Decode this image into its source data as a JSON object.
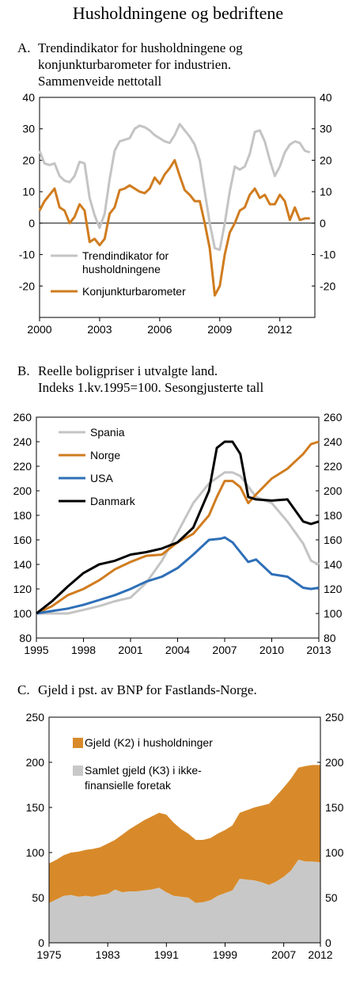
{
  "page": {
    "title": "Husholdningene og bedriftene"
  },
  "colors": {
    "orange": "#d07c1f",
    "gray": "#c4c4c4",
    "blue": "#2e6fb7",
    "black": "#000000",
    "area_gray": "#c8c8c8",
    "area_orange": "#d88a2a"
  },
  "chart_data": [
    {
      "id": "A",
      "type": "line",
      "title_letter": "A.",
      "title_lines": [
        "Trendindikator for husholdningene og",
        "konjunkturbarometer for industrien.",
        "Sammenveide nettotall"
      ],
      "xlim": [
        2000,
        2013.75
      ],
      "ylim": [
        -30,
        40
      ],
      "y_ticks": [
        "40",
        "30",
        "20",
        "10",
        "0",
        "-10",
        "-20"
      ],
      "y_tick_values": [
        40,
        30,
        20,
        10,
        0,
        -10,
        -20
      ],
      "x_ticks": [
        "2000",
        "2003",
        "2006",
        "2009",
        "2012"
      ],
      "x_tick_values": [
        2000,
        2003,
        2006,
        2009,
        2012
      ],
      "zero_line": true,
      "legend_position": "lower-left",
      "series": [
        {
          "name": "Trendindikator for husholdningene",
          "legend_lines": [
            "Trendindikator for",
            "husholdningene"
          ],
          "color": "gray",
          "x": [
            2000,
            2000.25,
            2000.5,
            2000.75,
            2001,
            2001.25,
            2001.5,
            2001.75,
            2002,
            2002.25,
            2002.5,
            2002.75,
            2003,
            2003.25,
            2003.5,
            2003.75,
            2004,
            2004.25,
            2004.5,
            2004.75,
            2005,
            2005.25,
            2005.5,
            2005.75,
            2006,
            2006.25,
            2006.5,
            2006.75,
            2007,
            2007.25,
            2007.5,
            2007.75,
            2008,
            2008.25,
            2008.5,
            2008.75,
            2009,
            2009.25,
            2009.5,
            2009.75,
            2010,
            2010.25,
            2010.5,
            2010.75,
            2011,
            2011.25,
            2011.5,
            2011.75,
            2012,
            2012.25,
            2012.5,
            2012.75,
            2013,
            2013.25,
            2013.5
          ],
          "y": [
            23,
            19,
            18.5,
            19,
            15,
            13.5,
            13,
            15,
            19.5,
            19,
            8,
            2.5,
            -1.5,
            3,
            14,
            23,
            26,
            26.5,
            27,
            30,
            31,
            30.5,
            29.5,
            28,
            27,
            26,
            25.5,
            28,
            31.5,
            29.5,
            27.5,
            25,
            20,
            10,
            0,
            -8,
            -8.5,
            0,
            10,
            18,
            17,
            18,
            22,
            29,
            29.5,
            26,
            20,
            15,
            18,
            22.5,
            25,
            26,
            25.5,
            23,
            22.5
          ]
        },
        {
          "name": "Konjunkturbarometer",
          "legend_lines": [
            "Konjunkturbarometer"
          ],
          "color": "orange",
          "x": [
            2000,
            2000.25,
            2000.5,
            2000.75,
            2001,
            2001.25,
            2001.5,
            2001.75,
            2002,
            2002.25,
            2002.5,
            2002.75,
            2003,
            2003.25,
            2003.5,
            2003.75,
            2004,
            2004.25,
            2004.5,
            2004.75,
            2005,
            2005.25,
            2005.5,
            2005.75,
            2006,
            2006.25,
            2006.5,
            2006.75,
            2007,
            2007.25,
            2007.5,
            2007.75,
            2008,
            2008.25,
            2008.5,
            2008.75,
            2009,
            2009.25,
            2009.5,
            2009.75,
            2010,
            2010.25,
            2010.5,
            2010.75,
            2011,
            2011.25,
            2011.5,
            2011.75,
            2012,
            2012.25,
            2012.5,
            2012.75,
            2013,
            2013.25,
            2013.5
          ],
          "y": [
            4,
            7,
            9,
            11,
            5,
            4,
            0,
            2,
            6,
            4,
            -6,
            -5,
            -7,
            -5,
            3,
            5,
            10.5,
            11,
            12,
            11,
            10,
            9.5,
            11,
            14.5,
            12.5,
            15.5,
            17.5,
            20,
            15,
            10.5,
            9,
            7,
            7,
            0,
            -8,
            -23,
            -20,
            -10,
            -3,
            0,
            4,
            5,
            9,
            11,
            8,
            9,
            6,
            6,
            9,
            7,
            1,
            5,
            1,
            1.5,
            1.5
          ]
        }
      ]
    },
    {
      "id": "B",
      "type": "line",
      "title_letter": "B.",
      "title_lines": [
        "Reelle boligpriser i utvalgte land.",
        "Indeks 1.kv.1995=100. Sesongjusterte tall"
      ],
      "xlim": [
        1995,
        2013
      ],
      "ylim": [
        80,
        260
      ],
      "y_ticks": [
        "260",
        "240",
        "220",
        "200",
        "180",
        "160",
        "140",
        "120",
        "100",
        "80"
      ],
      "y_tick_values": [
        260,
        240,
        220,
        200,
        180,
        160,
        140,
        120,
        100,
        80
      ],
      "x_ticks": [
        "1995",
        "1998",
        "2001",
        "2004",
        "2007",
        "2010",
        "2013"
      ],
      "x_tick_values": [
        1995,
        1998,
        2001,
        2004,
        2007,
        2010,
        2013
      ],
      "legend_position": "top-left",
      "series": [
        {
          "name": "Spania",
          "color": "gray",
          "x": [
            1995,
            1996,
            1997,
            1998,
            1999,
            2000,
            2001,
            2002,
            2003,
            2004,
            2005,
            2006,
            2007,
            2007.5,
            2008,
            2009,
            2010,
            2011,
            2012,
            2012.5,
            2013
          ],
          "y": [
            100,
            100,
            100,
            103,
            106,
            110,
            113,
            125,
            143,
            166,
            190,
            206,
            215,
            215,
            212,
            195,
            190,
            175,
            157,
            143,
            140
          ]
        },
        {
          "name": "Norge",
          "color": "orange",
          "x": [
            1995,
            1996,
            1997,
            1998,
            1999,
            2000,
            2001,
            2002,
            2003,
            2004,
            2005,
            2006,
            2006.5,
            2007,
            2007.5,
            2008,
            2008.5,
            2009,
            2010,
            2011,
            2012,
            2012.5,
            2013
          ],
          "y": [
            100,
            106,
            115,
            120,
            127,
            136,
            142,
            147,
            148,
            158,
            165,
            180,
            195,
            208,
            208,
            203,
            190,
            197,
            210,
            218,
            230,
            238,
            240
          ]
        },
        {
          "name": "USA",
          "color": "blue",
          "x": [
            1995,
            1996,
            1997,
            1998,
            1999,
            2000,
            2001,
            2002,
            2003,
            2004,
            2005,
            2006,
            2006.75,
            2007,
            2007.5,
            2008,
            2008.5,
            2009,
            2010,
            2011,
            2012,
            2012.5,
            2013
          ],
          "y": [
            100,
            102,
            104,
            107,
            111,
            115,
            120,
            126,
            130,
            137,
            148,
            160,
            161,
            162,
            158,
            150,
            142,
            144,
            132,
            130,
            121,
            120,
            121
          ]
        },
        {
          "name": "Danmark",
          "color": "black",
          "x": [
            1995,
            1996,
            1997,
            1998,
            1999,
            2000,
            2001,
            2002,
            2003,
            2004,
            2005,
            2006,
            2006.5,
            2007,
            2007.5,
            2008,
            2008.5,
            2009,
            2010,
            2011,
            2012,
            2012.5,
            2013
          ],
          "y": [
            100,
            110,
            122,
            133,
            140,
            143,
            148,
            150,
            153,
            158,
            170,
            200,
            235,
            240,
            240,
            230,
            195,
            193,
            192,
            193,
            175,
            173,
            175
          ]
        }
      ]
    },
    {
      "id": "C",
      "type": "area",
      "title_letter": "C.",
      "title_lines": [
        "Gjeld i pst. av BNP for Fastlands-Norge."
      ],
      "xlim": [
        1975,
        2012
      ],
      "ylim": [
        0,
        250
      ],
      "y_ticks": [
        "250",
        "200",
        "150",
        "100",
        "50",
        "0"
      ],
      "y_tick_values": [
        250,
        200,
        150,
        100,
        50,
        0
      ],
      "x_ticks": [
        "1975",
        "1983",
        "1991",
        "1999",
        "2007",
        "2012"
      ],
      "x_tick_values": [
        1975,
        1983,
        1991,
        1999,
        2007,
        2012
      ],
      "legend_position": "top-left",
      "x": [
        1975,
        1976,
        1977,
        1978,
        1979,
        1980,
        1981,
        1982,
        1983,
        1984,
        1985,
        1986,
        1987,
        1988,
        1989,
        1990,
        1991,
        1992,
        1993,
        1994,
        1995,
        1996,
        1997,
        1998,
        1999,
        2000,
        2001,
        2002,
        2003,
        2004,
        2005,
        2006,
        2007,
        2008,
        2009,
        2010,
        2011,
        2012
      ],
      "series": [
        {
          "name": "Samlet gjeld (K3) i ikke-finansielle foretak",
          "legend_lines": [
            "Samlet gjeld (K3) i ikke-",
            "finansielle foretak"
          ],
          "color": "area_gray",
          "values": [
            44,
            48,
            52,
            53,
            51,
            52,
            51,
            53,
            54,
            59,
            56,
            57,
            57,
            58,
            59,
            61,
            56,
            52,
            51,
            50,
            44,
            45,
            47,
            52,
            55,
            58,
            71,
            70,
            69,
            67,
            64,
            68,
            73,
            80,
            92,
            90,
            90,
            89
          ]
        },
        {
          "name": "Gjeld (K2) i husholdninger",
          "legend_lines": [
            "Gjeld (K2) i husholdninger"
          ],
          "color": "area_orange",
          "total": [
            88,
            92,
            97,
            100,
            101,
            103,
            104,
            106,
            110,
            114,
            120,
            126,
            131,
            136,
            140,
            144,
            142,
            133,
            126,
            121,
            114,
            114,
            116,
            121,
            125,
            130,
            144,
            147,
            150,
            152,
            154,
            163,
            172,
            182,
            194,
            196,
            197,
            197
          ]
        }
      ]
    }
  ]
}
